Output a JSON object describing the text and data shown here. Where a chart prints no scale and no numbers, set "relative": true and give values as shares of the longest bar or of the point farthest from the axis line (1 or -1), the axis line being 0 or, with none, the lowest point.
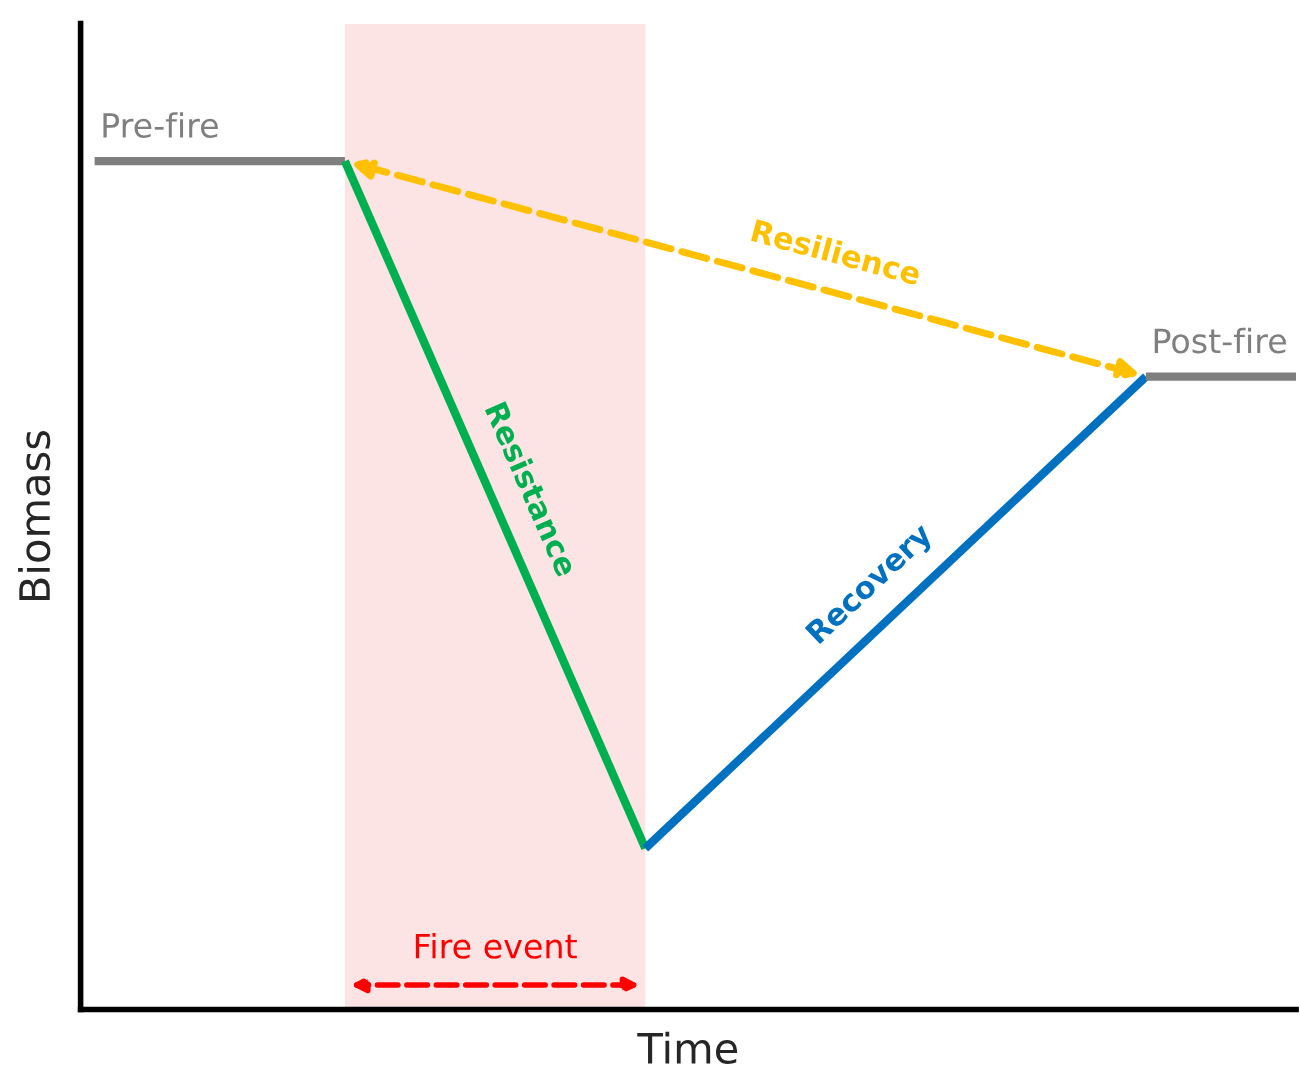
{
  "chart_data": {
    "type": "line",
    "relative": true,
    "xlabel": "Time",
    "ylabel": "Biomass",
    "tick_labels": false,
    "legend": false,
    "line_style": "solid",
    "marker": "none",
    "categories": [
      null,
      null,
      null,
      null,
      null,
      null,
      null,
      null,
      null,
      null,
      null,
      null,
      null,
      null,
      null,
      null,
      null,
      null,
      null,
      null,
      null,
      null,
      null,
      null,
      null
    ],
    "series": [
      {
        "name": "Pre-fire",
        "color": "#7f7f7f",
        "values": [
          1,
          null,
          null,
          null,
          null,
          1,
          null,
          null,
          null,
          null,
          null,
          null,
          null,
          null,
          null,
          null,
          null,
          null,
          null,
          null,
          null,
          null,
          null,
          null,
          null
        ]
      },
      {
        "name": "Resistance",
        "color": "#00b050",
        "values": [
          null,
          null,
          null,
          null,
          null,
          1,
          null,
          null,
          null,
          null,
          null,
          0.19,
          null,
          null,
          null,
          null,
          null,
          null,
          null,
          null,
          null,
          null,
          null,
          null,
          null
        ]
      },
      {
        "name": "Recovery",
        "color": "#0070c0",
        "values": [
          null,
          null,
          null,
          null,
          null,
          null,
          null,
          null,
          null,
          null,
          null,
          0.19,
          null,
          null,
          null,
          null,
          null,
          null,
          null,
          null,
          null,
          0.746,
          null,
          null,
          null
        ]
      },
      {
        "name": "Post-fire",
        "color": "#7f7f7f",
        "values": [
          null,
          null,
          null,
          null,
          null,
          null,
          null,
          null,
          null,
          null,
          null,
          null,
          null,
          null,
          null,
          null,
          null,
          null,
          null,
          null,
          null,
          0.746,
          null,
          null,
          0.746
        ]
      }
    ],
    "annotations": [
      "Resilience",
      "Fire event"
    ]
  }
}
